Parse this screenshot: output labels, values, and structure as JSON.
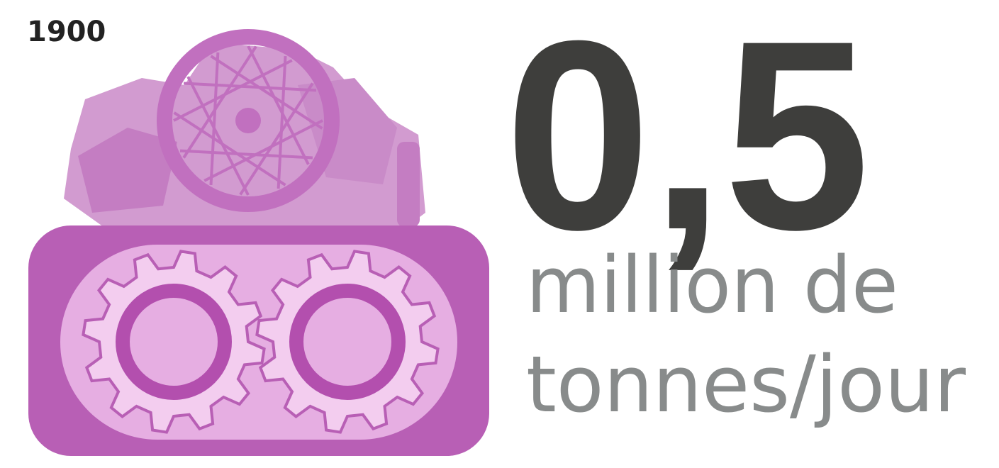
{
  "year": "1900",
  "figure": "0,5",
  "unit_line1": "million de",
  "unit_line2": "tonnes/jour"
}
